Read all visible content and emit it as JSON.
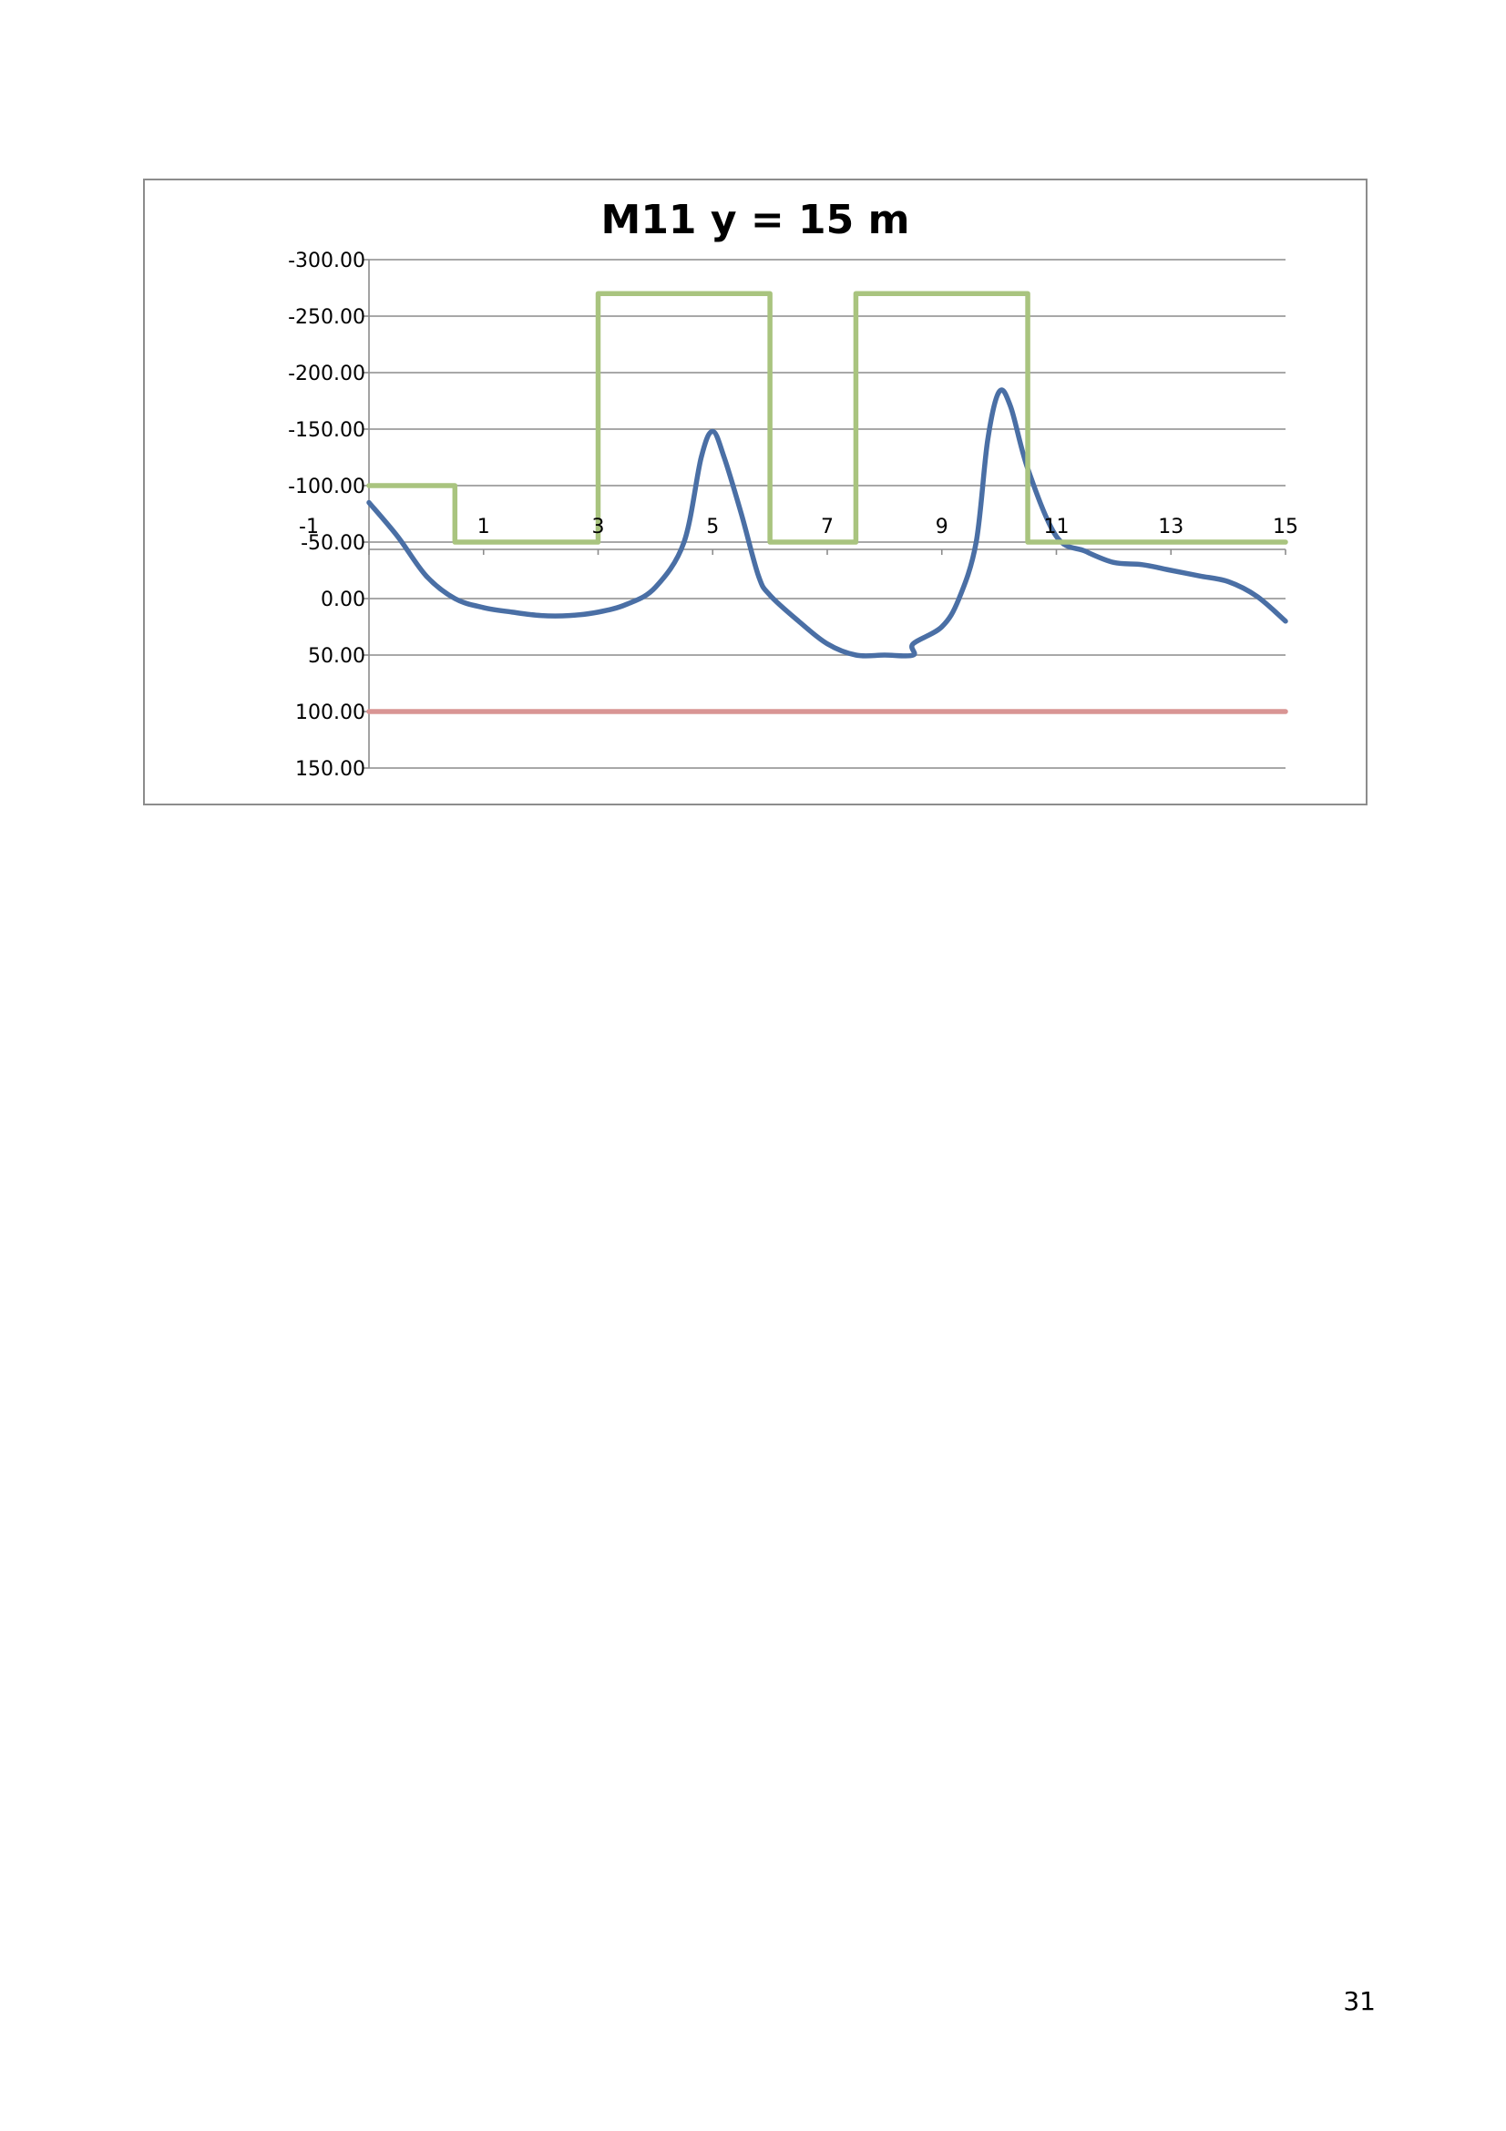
{
  "chart_data": {
    "type": "line",
    "title": "M11 y = 15 m",
    "xlabel": "",
    "ylabel": "",
    "xlim": [
      -1,
      15
    ],
    "ylim": [
      -300,
      150
    ],
    "y_inverted": true,
    "x_ticks": [
      -1,
      1,
      3,
      5,
      7,
      9,
      11,
      13,
      15
    ],
    "y_ticks": [
      -300,
      -250,
      -200,
      -150,
      -100,
      -50,
      0,
      50,
      100,
      150
    ],
    "y_tick_format": "fixed2",
    "grid": "horizontal",
    "legend": "none",
    "series": [
      {
        "color": "#4a6fa5",
        "x": [
          -1,
          -0.5,
          0,
          0.5,
          1,
          1.5,
          2,
          2.5,
          3,
          3.5,
          4,
          4.5,
          4.8,
          5,
          5.2,
          5.5,
          5.8,
          6,
          6.5,
          7,
          7.5,
          8,
          8.5,
          8.5,
          9,
          9.3,
          9.6,
          9.8,
          10,
          10.2,
          10.5,
          11,
          11.5,
          12,
          12.5,
          13,
          13.5,
          14,
          14.5,
          15
        ],
        "y": [
          -85,
          -55,
          -20,
          0,
          8,
          12,
          15,
          15,
          12,
          5,
          -10,
          -50,
          -125,
          -148,
          -125,
          -75,
          -20,
          -3,
          20,
          40,
          50,
          50,
          50,
          40,
          25,
          0,
          -50,
          -140,
          -183,
          -170,
          -115,
          -55,
          -42,
          -32,
          -30,
          -25,
          -20,
          -15,
          -2,
          20
        ]
      },
      {
        "color": "#a9c47f",
        "x": [
          -1,
          0.5,
          0.5,
          3,
          3,
          6,
          6,
          7.5,
          7.5,
          10.5,
          10.5,
          15
        ],
        "y": [
          -100,
          -100,
          -50,
          -50,
          -270,
          -270,
          -50,
          -50,
          -270,
          -270,
          -50,
          -50
        ]
      },
      {
        "color": "#d99594",
        "x": [
          -1,
          15
        ],
        "y": [
          100,
          100
        ]
      }
    ]
  },
  "page": {
    "number": "31"
  }
}
